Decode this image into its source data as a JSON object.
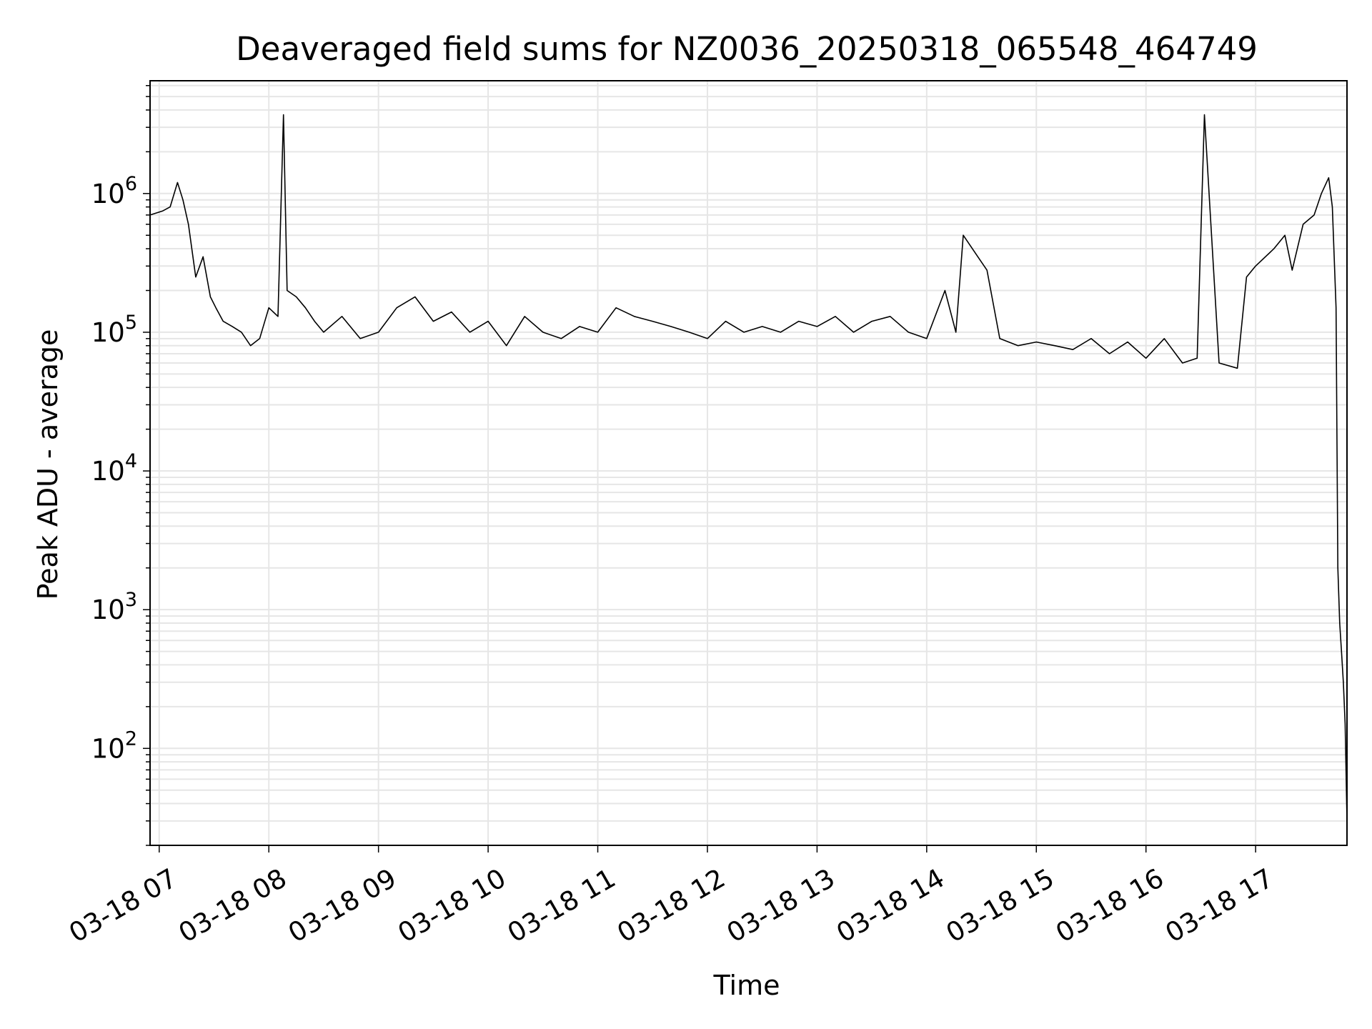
{
  "chart_data": {
    "type": "line",
    "title": "Deaveraged field sums for NZ0036_20250318_065548_464749",
    "xlabel": "Time",
    "ylabel": "Peak ADU - average",
    "y_scale": "log",
    "ylim": [
      20,
      6500000
    ],
    "xlim": [
      "03-18 06:55",
      "03-18 17:50"
    ],
    "grid": true,
    "line_color": "#000000",
    "grid_color": "#e6e6e6",
    "x_ticks": [
      {
        "time": "07:00",
        "label": "03-18 07"
      },
      {
        "time": "08:00",
        "label": "03-18 08"
      },
      {
        "time": "09:00",
        "label": "03-18 09"
      },
      {
        "time": "10:00",
        "label": "03-18 10"
      },
      {
        "time": "11:00",
        "label": "03-18 11"
      },
      {
        "time": "12:00",
        "label": "03-18 12"
      },
      {
        "time": "13:00",
        "label": "03-18 13"
      },
      {
        "time": "14:00",
        "label": "03-18 14"
      },
      {
        "time": "15:00",
        "label": "03-18 15"
      },
      {
        "time": "16:00",
        "label": "03-18 16"
      },
      {
        "time": "17:00",
        "label": "03-18 17"
      }
    ],
    "y_ticks": [
      {
        "value": 100,
        "base": "10",
        "exp": "2"
      },
      {
        "value": 1000,
        "base": "10",
        "exp": "3"
      },
      {
        "value": 10000,
        "base": "10",
        "exp": "4"
      },
      {
        "value": 100000,
        "base": "10",
        "exp": "5"
      },
      {
        "value": 1000000,
        "base": "10",
        "exp": "6"
      }
    ],
    "series": [
      {
        "x": [
          "06:55",
          "07:02",
          "07:06",
          "07:10",
          "07:13",
          "07:16",
          "07:20",
          "07:24",
          "07:28",
          "07:31",
          "07:35",
          "07:40",
          "07:45",
          "07:50",
          "07:55",
          "08:00",
          "08:05",
          "08:08",
          "08:10",
          "08:15",
          "08:20",
          "08:25",
          "08:30",
          "08:40",
          "08:50",
          "09:00",
          "09:10",
          "09:20",
          "09:30",
          "09:40",
          "09:50",
          "10:00",
          "10:10",
          "10:20",
          "10:30",
          "10:40",
          "10:50",
          "11:00",
          "11:10",
          "11:20",
          "11:30",
          "11:40",
          "11:50",
          "12:00",
          "12:10",
          "12:20",
          "12:30",
          "12:40",
          "12:50",
          "13:00",
          "13:10",
          "13:20",
          "13:30",
          "13:40",
          "13:50",
          "14:00",
          "14:10",
          "14:16",
          "14:20",
          "14:28",
          "14:33",
          "14:40",
          "14:50",
          "15:00",
          "15:10",
          "15:20",
          "15:30",
          "15:40",
          "15:50",
          "16:00",
          "16:10",
          "16:20",
          "16:28",
          "16:32",
          "16:40",
          "16:50",
          "16:55",
          "17:00",
          "17:10",
          "17:16",
          "17:20",
          "17:26",
          "17:32",
          "17:36",
          "17:40",
          "17:42",
          "17:44",
          "17:45",
          "17:46",
          "17:47",
          "17:48",
          "17:49",
          "17:50"
        ],
        "y": [
          700000,
          750000,
          800000,
          1200000,
          900000,
          600000,
          250000,
          350000,
          180000,
          150000,
          120000,
          110000,
          100000,
          80000,
          90000,
          150000,
          130000,
          3700000,
          200000,
          180000,
          150000,
          120000,
          100000,
          130000,
          90000,
          100000,
          150000,
          180000,
          120000,
          140000,
          100000,
          120000,
          80000,
          130000,
          100000,
          90000,
          110000,
          100000,
          150000,
          130000,
          120000,
          110000,
          100000,
          90000,
          120000,
          100000,
          110000,
          100000,
          120000,
          110000,
          130000,
          100000,
          120000,
          130000,
          100000,
          90000,
          200000,
          100000,
          500000,
          350000,
          280000,
          90000,
          80000,
          85000,
          80000,
          75000,
          90000,
          70000,
          85000,
          65000,
          90000,
          60000,
          65000,
          3700000,
          60000,
          55000,
          250000,
          300000,
          400000,
          500000,
          280000,
          600000,
          700000,
          1000000,
          1300000,
          800000,
          150000,
          2000,
          800,
          500,
          300,
          150,
          30
        ]
      }
    ]
  }
}
